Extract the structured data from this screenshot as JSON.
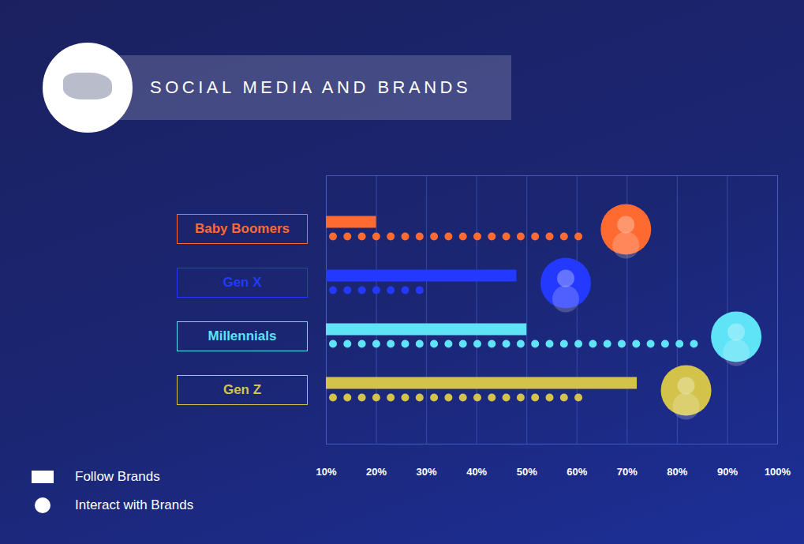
{
  "chart_data": {
    "type": "bar",
    "orientation": "horizontal",
    "title": "SOCIAL MEDIA AND BRANDS",
    "categories": [
      "Baby Boomers",
      "Gen X",
      "Millennials",
      "Gen Z"
    ],
    "colors": [
      "#ff6a30",
      "#2339ff",
      "#5ee3f7",
      "#d3c34b"
    ],
    "series": [
      {
        "name": "Follow Brands",
        "type": "bar",
        "values": [
          20,
          48,
          50,
          72
        ]
      },
      {
        "name": "Interact with Brands",
        "type": "dot",
        "marker": "circle",
        "values": [
          60,
          30,
          82,
          60
        ]
      }
    ],
    "xlim": [
      10,
      100
    ],
    "xticks": [
      {
        "value": 10,
        "label": "10%"
      },
      {
        "value": 20,
        "label": "20%"
      },
      {
        "value": 30,
        "label": "30%"
      },
      {
        "value": 40,
        "label": "40%"
      },
      {
        "value": 50,
        "label": "50%"
      },
      {
        "value": 60,
        "label": "60%"
      },
      {
        "value": 70,
        "label": "70%"
      },
      {
        "value": 80,
        "label": "80%"
      },
      {
        "value": 90,
        "label": "90%"
      },
      {
        "value": 100,
        "label": "100%"
      }
    ],
    "grid": true,
    "legend": "bottom-left"
  }
}
